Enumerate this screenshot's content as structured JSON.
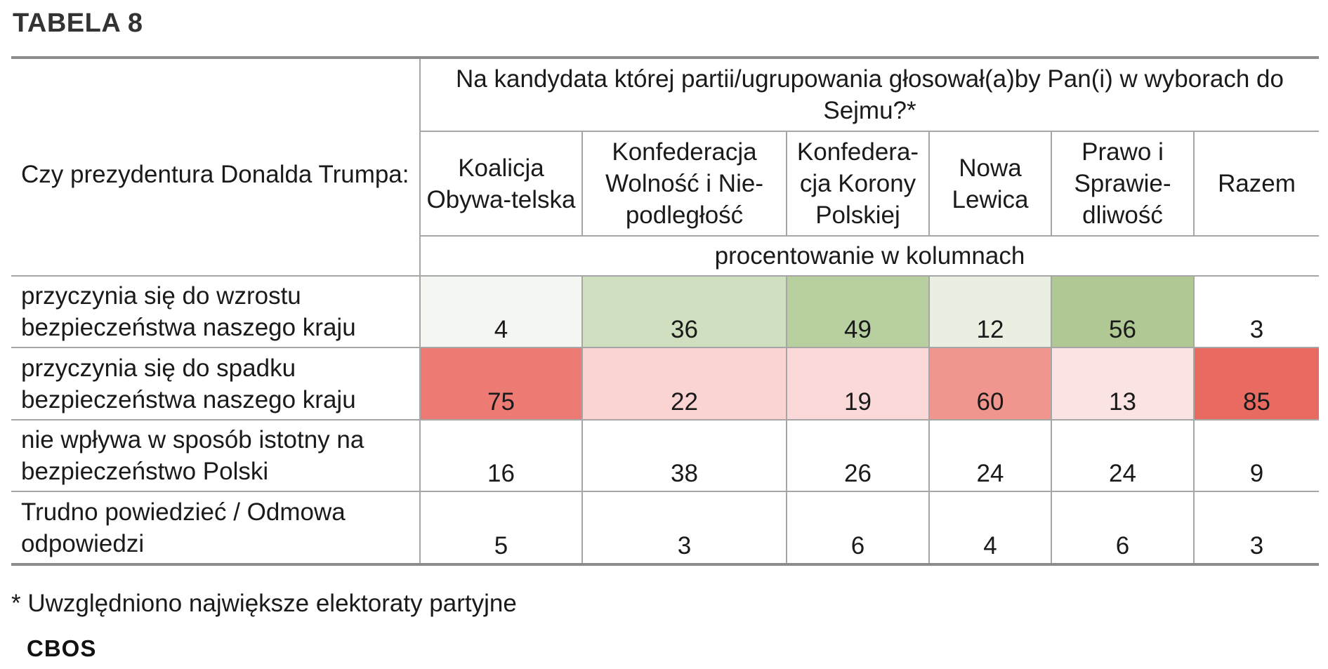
{
  "title": "TABELA 8",
  "table": {
    "corner_label": "Czy prezydentura Donalda Trumpa:",
    "question": "Na kandydata której partii/ugrupowania głosował(a)by Pan(i) w wyborach do Sejmu?*",
    "columns": [
      "Koalicja Obywa-telska",
      "Konfederacja Wolność i Nie-podległość",
      "Konfedera-cja Korony Polskiej",
      "Nowa Lewica",
      "Prawo i Sprawie-dliwość",
      "Razem"
    ],
    "unit_note": "procentowanie w kolumnach",
    "rows": [
      {
        "label": "przyczynia się do wzrostu bezpieczeństwa naszego kraju",
        "values": [
          "4",
          "36",
          "49",
          "12",
          "56",
          "3"
        ]
      },
      {
        "label": "przyczynia się do spadku bezpieczeństwa naszego kraju",
        "values": [
          "75",
          "22",
          "19",
          "60",
          "13",
          "85"
        ]
      },
      {
        "label": "nie wpływa w sposób istotny na bezpieczeństwo Polski",
        "values": [
          "16",
          "38",
          "26",
          "24",
          "24",
          "9"
        ]
      },
      {
        "label": "Trudno powiedzieć / Odmowa odpowiedzi",
        "values": [
          "5",
          "3",
          "6",
          "4",
          "6",
          "3"
        ]
      }
    ],
    "cell_colors": [
      [
        "#f4f6f1",
        "#cfdfc0",
        "#b8cfa0",
        "#e9f0e2",
        "#b0c994",
        "#ffffff"
      ],
      [
        "#ee7b73",
        "#f9d4d3",
        "#fad9d8",
        "#f0968f",
        "#fbe3e3",
        "#e96a60"
      ],
      [
        "#ffffff",
        "#ffffff",
        "#ffffff",
        "#ffffff",
        "#ffffff",
        "#ffffff"
      ],
      [
        "#ffffff",
        "#ffffff",
        "#ffffff",
        "#ffffff",
        "#ffffff",
        "#ffffff"
      ]
    ]
  },
  "footnote": "* Uwzględniono największe elektoraty partyjne",
  "source": "CBOS"
}
